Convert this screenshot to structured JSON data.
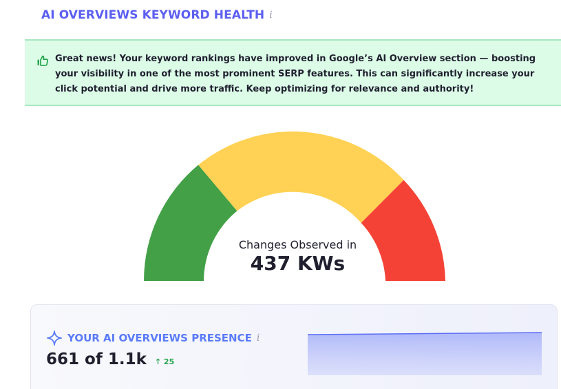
{
  "header": {
    "title": "AI OVERVIEWS KEYWORD HEALTH",
    "title_color": "#5b5ff0",
    "info_icon": "i"
  },
  "alert": {
    "icon": "thumbs-up-icon",
    "message": "Great news! Your keyword rankings have improved in Google’s AI Overview section — boosting your visibility in one of the most prominent SERP features. This can significantly increase your click potential and drive more traffic. Keep optimizing for relevance and authority!",
    "background_color": "#dcfce8",
    "border_color": "#a8e6c0"
  },
  "gauge": {
    "label": "Changes Observed in",
    "value": "437 KWs",
    "segments": [
      {
        "name": "green",
        "color": "#43a047"
      },
      {
        "name": "yellow",
        "color": "#ffd255"
      },
      {
        "name": "red",
        "color": "#f44336"
      }
    ]
  },
  "presence": {
    "title": "YOUR AI OVERVIEWS PRESENCE",
    "info_icon": "i",
    "value": "661 of 1.1k",
    "delta": "↑ 25",
    "delta_color": "#22a34a",
    "accent_color": "#5b7bf7",
    "sparkline_color": "#5b6ef5"
  }
}
